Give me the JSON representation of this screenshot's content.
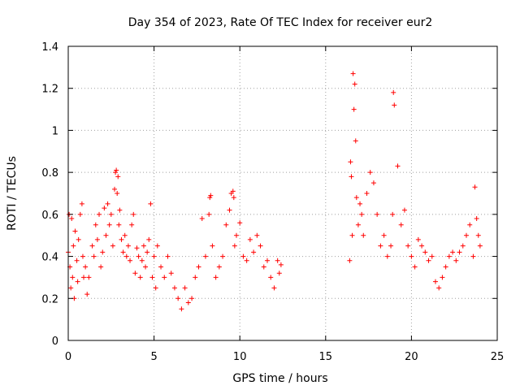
{
  "chart_data": {
    "type": "scatter",
    "title": "Day 354 of 2023, Rate Of TEC Index for receiver eur2",
    "xlabel": "GPS time / hours",
    "ylabel": "ROTI / TECUs",
    "xlim": [
      0,
      25
    ],
    "ylim": [
      0,
      1.4
    ],
    "x_ticks": [
      0,
      5,
      10,
      15,
      20,
      25
    ],
    "y_ticks": [
      0,
      0.2,
      0.4,
      0.6,
      0.8,
      1,
      1.2,
      1.4
    ],
    "x_tick_labels": [
      "0",
      "5",
      "10",
      "15",
      "20",
      "25"
    ],
    "y_tick_labels": [
      "0",
      "0.2",
      "0.4",
      "0.6",
      "0.8",
      "1",
      "1.2",
      "1.4"
    ],
    "grid": true,
    "marker": "plus",
    "series_color": "#ff0000",
    "series": [
      {
        "x": [
          0.0,
          0.05,
          0.1,
          0.15,
          0.2,
          0.25,
          0.3,
          0.35,
          0.4,
          0.5,
          0.55,
          0.6,
          0.7,
          0.8,
          0.85,
          0.9,
          1.0,
          1.1,
          1.2,
          1.4,
          1.5,
          1.6,
          1.7,
          1.8,
          1.9,
          2.0,
          2.1,
          2.2,
          2.3,
          2.4,
          2.5,
          2.6,
          2.7,
          2.75,
          2.8,
          2.85,
          2.9,
          2.95,
          3.0,
          3.1,
          3.2,
          3.3,
          3.4,
          3.5,
          3.6,
          3.7,
          3.8,
          3.9,
          4.0,
          4.1,
          4.2,
          4.3,
          4.4,
          4.5,
          4.6,
          4.7,
          4.8,
          4.9,
          5.0,
          5.1,
          5.2,
          5.4,
          5.6,
          5.8,
          6.0,
          6.2,
          6.4,
          6.6,
          6.8,
          7.0,
          7.2,
          7.4,
          7.6,
          7.8,
          8.0,
          8.2,
          8.25,
          8.3,
          8.4,
          8.6,
          8.8,
          9.0,
          9.2,
          9.4,
          9.5,
          9.6,
          9.65,
          9.7,
          9.8,
          10.0,
          10.2,
          10.4,
          10.6,
          10.8,
          11.0,
          11.2,
          11.4,
          11.6,
          11.8,
          12.0,
          12.2,
          12.3,
          12.4,
          16.4,
          16.45,
          16.5,
          16.55,
          16.6,
          16.65,
          16.7,
          16.75,
          16.8,
          16.9,
          17.0,
          17.1,
          17.2,
          17.4,
          17.6,
          17.8,
          18.0,
          18.2,
          18.4,
          18.6,
          18.8,
          18.9,
          18.95,
          19.0,
          19.2,
          19.4,
          19.6,
          19.8,
          20.0,
          20.2,
          20.4,
          20.6,
          20.8,
          21.0,
          21.2,
          21.4,
          21.6,
          21.8,
          22.0,
          22.2,
          22.4,
          22.6,
          22.8,
          23.0,
          23.2,
          23.4,
          23.6,
          23.7,
          23.8,
          23.9,
          24.0
        ],
        "y": [
          0.42,
          0.6,
          0.35,
          0.25,
          0.58,
          0.3,
          0.45,
          0.2,
          0.52,
          0.38,
          0.28,
          0.48,
          0.6,
          0.65,
          0.4,
          0.3,
          0.35,
          0.22,
          0.3,
          0.45,
          0.4,
          0.55,
          0.48,
          0.6,
          0.35,
          0.42,
          0.63,
          0.5,
          0.65,
          0.55,
          0.6,
          0.45,
          0.72,
          0.8,
          0.81,
          0.7,
          0.78,
          0.55,
          0.62,
          0.48,
          0.42,
          0.5,
          0.4,
          0.45,
          0.38,
          0.55,
          0.6,
          0.32,
          0.44,
          0.4,
          0.3,
          0.38,
          0.45,
          0.35,
          0.42,
          0.48,
          0.65,
          0.3,
          0.4,
          0.25,
          0.45,
          0.35,
          0.3,
          0.4,
          0.32,
          0.25,
          0.2,
          0.15,
          0.25,
          0.18,
          0.2,
          0.3,
          0.35,
          0.58,
          0.4,
          0.6,
          0.68,
          0.69,
          0.45,
          0.3,
          0.35,
          0.4,
          0.55,
          0.62,
          0.7,
          0.71,
          0.68,
          0.45,
          0.5,
          0.56,
          0.4,
          0.38,
          0.48,
          0.42,
          0.5,
          0.45,
          0.35,
          0.38,
          0.3,
          0.25,
          0.38,
          0.32,
          0.36,
          0.38,
          0.85,
          0.78,
          0.5,
          1.27,
          1.1,
          1.22,
          0.95,
          0.68,
          0.55,
          0.65,
          0.6,
          0.5,
          0.7,
          0.8,
          0.75,
          0.6,
          0.45,
          0.5,
          0.4,
          0.45,
          0.6,
          1.18,
          1.12,
          0.83,
          0.55,
          0.62,
          0.45,
          0.4,
          0.35,
          0.48,
          0.45,
          0.42,
          0.38,
          0.4,
          0.28,
          0.25,
          0.3,
          0.35,
          0.4,
          0.42,
          0.38,
          0.42,
          0.45,
          0.5,
          0.55,
          0.4,
          0.73,
          0.58,
          0.5,
          0.45
        ]
      }
    ]
  }
}
